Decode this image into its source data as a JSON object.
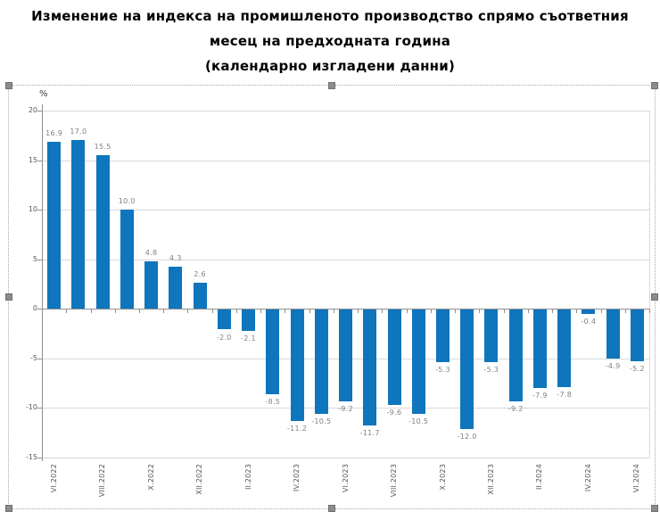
{
  "title": {
    "line1": "Изменение на индекса на промишленото производство спрямо съответния",
    "line2": "месец на предходната година",
    "line3": "(календарно изгладени данни)"
  },
  "selection": {
    "selected": true,
    "handle_color": "#8c8c8c",
    "border_style": "dotted"
  },
  "chart_data": {
    "type": "bar",
    "title": "Изменение на индекса на промишленото производство спрямо съответния месец на предходната година (календарно изгладени данни)",
    "ylabel": "%",
    "xlabel": "",
    "ylim": [
      -15,
      20
    ],
    "y_ticks": [
      20,
      15,
      10,
      5,
      0,
      -5,
      -10,
      -15
    ],
    "grid": "horizontal",
    "legend_position": "none",
    "values": [
      16.9,
      17.0,
      15.5,
      10.0,
      4.8,
      4.3,
      2.6,
      -2.0,
      -2.1,
      -8.5,
      -11.2,
      -10.5,
      -9.2,
      -11.7,
      -9.6,
      -10.5,
      -5.3,
      -12.0,
      -5.3,
      -9.2,
      -7.9,
      -7.8,
      -0.4,
      -4.9,
      -5.2
    ],
    "x_tick_labels": [
      "VI.2022",
      "VIII.2022",
      "X.2022",
      "XII.2022",
      "II.2023",
      "IV.2023",
      "VI.2023",
      "VIII.2023",
      "X.2023",
      "XII.2023",
      "II.2024",
      "IV.2024",
      "VI.2024"
    ],
    "x_tick_every": 2,
    "bar_color": "#0f75bc",
    "gridline_color": "#d9d9d9",
    "axis_color": "#8f8f8f",
    "tick_label_color": "#595959",
    "data_label_color": "#808080"
  }
}
